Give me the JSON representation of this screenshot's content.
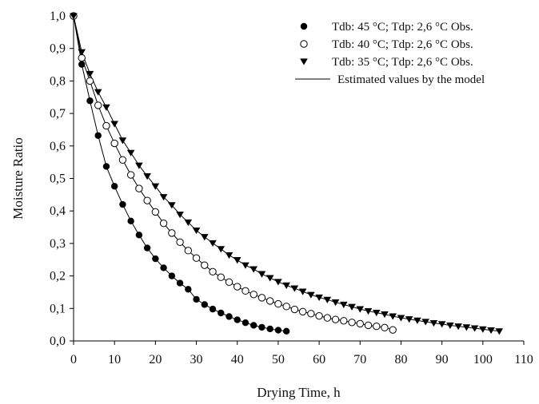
{
  "chart_data": {
    "type": "scatter",
    "xlabel": "Drying Time, h",
    "ylabel": "Moisture Ratio",
    "xlim": [
      0,
      110
    ],
    "ylim": [
      0,
      1.0
    ],
    "x_ticks": [
      "0",
      "10",
      "20",
      "30",
      "40",
      "50",
      "60",
      "70",
      "80",
      "90",
      "100",
      "110"
    ],
    "y_ticks": [
      "0,0",
      "0,1",
      "0,2",
      "0,3",
      "0,4",
      "0,5",
      "0,6",
      "0,7",
      "0,8",
      "0,9",
      "1,0"
    ],
    "grid": false,
    "legend_position": "top-right",
    "series": [
      {
        "name": "Tdb: 45 °C; Tdp: 2,6 °C Obs.",
        "marker": "filled-circle",
        "x": [
          0,
          2,
          4,
          6,
          8,
          10,
          12,
          14,
          16,
          18,
          20,
          22,
          24,
          26,
          28,
          30,
          32,
          34,
          36,
          38,
          40,
          42,
          44,
          46,
          48,
          50,
          52
        ],
        "y": [
          1.0,
          0.851,
          0.739,
          0.632,
          0.537,
          0.476,
          0.42,
          0.369,
          0.326,
          0.286,
          0.253,
          0.225,
          0.2,
          0.178,
          0.159,
          0.128,
          0.112,
          0.098,
          0.086,
          0.075,
          0.065,
          0.056,
          0.048,
          0.042,
          0.037,
          0.033,
          0.03
        ]
      },
      {
        "name": "Tdb: 40 °C; Tdp: 2,6 °C Obs.",
        "marker": "open-circle",
        "x": [
          0,
          2,
          4,
          6,
          8,
          10,
          12,
          14,
          16,
          18,
          20,
          22,
          24,
          26,
          28,
          30,
          32,
          34,
          36,
          38,
          40,
          42,
          44,
          46,
          48,
          50,
          52,
          54,
          56,
          58,
          60,
          62,
          64,
          66,
          68,
          70,
          72,
          74,
          76,
          78
        ],
        "y": [
          1.0,
          0.871,
          0.8,
          0.725,
          0.662,
          0.608,
          0.557,
          0.511,
          0.469,
          0.432,
          0.397,
          0.362,
          0.332,
          0.304,
          0.278,
          0.255,
          0.233,
          0.213,
          0.196,
          0.181,
          0.167,
          0.154,
          0.143,
          0.133,
          0.123,
          0.114,
          0.106,
          0.097,
          0.09,
          0.084,
          0.077,
          0.071,
          0.066,
          0.062,
          0.057,
          0.053,
          0.048,
          0.045,
          0.041,
          0.034
        ]
      },
      {
        "name": "Tdb: 35 °C; Tdp: 2,6 °C Obs.",
        "marker": "filled-triangle-down",
        "x": [
          0,
          2,
          4,
          6,
          8,
          10,
          12,
          14,
          16,
          18,
          20,
          22,
          24,
          26,
          28,
          30,
          32,
          34,
          36,
          38,
          40,
          42,
          44,
          46,
          48,
          50,
          52,
          54,
          56,
          58,
          60,
          62,
          64,
          66,
          68,
          70,
          72,
          74,
          76,
          78,
          80,
          82,
          84,
          86,
          88,
          90,
          92,
          94,
          96,
          98,
          100,
          102,
          104
        ],
        "y": [
          1.0,
          0.889,
          0.822,
          0.766,
          0.719,
          0.668,
          0.617,
          0.579,
          0.54,
          0.507,
          0.476,
          0.443,
          0.418,
          0.389,
          0.365,
          0.34,
          0.32,
          0.301,
          0.283,
          0.264,
          0.249,
          0.233,
          0.221,
          0.206,
          0.194,
          0.182,
          0.171,
          0.162,
          0.152,
          0.142,
          0.134,
          0.127,
          0.119,
          0.112,
          0.105,
          0.098,
          0.092,
          0.087,
          0.082,
          0.076,
          0.071,
          0.067,
          0.063,
          0.059,
          0.055,
          0.052,
          0.048,
          0.045,
          0.042,
          0.039,
          0.036,
          0.033,
          0.03
        ]
      }
    ],
    "model_line": {
      "name": "Estimated values by the model"
    }
  }
}
